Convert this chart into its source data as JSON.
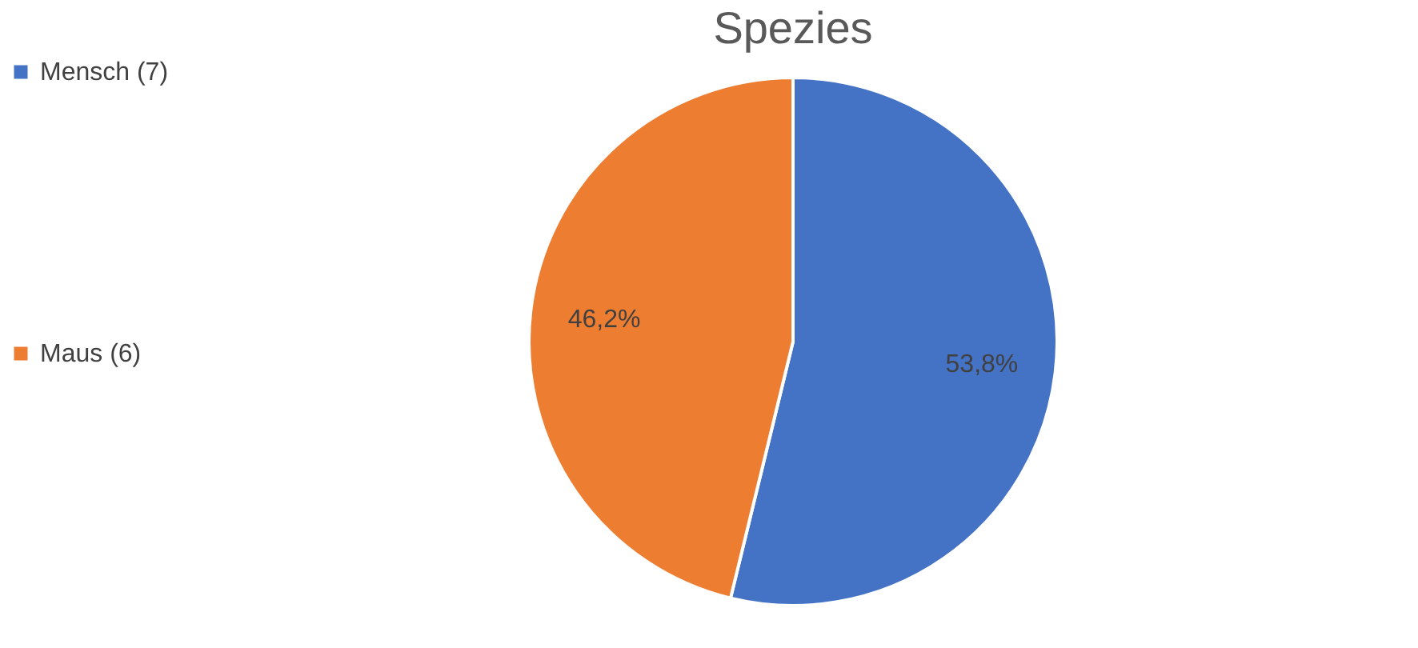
{
  "chart_data": {
    "type": "pie",
    "title": "Spezies",
    "categories": [
      "Mensch (7)",
      "Maus (6)"
    ],
    "values": [
      53.8,
      46.2
    ],
    "value_labels": [
      "53,8%",
      "46,2%"
    ],
    "colors": [
      "#4472c4",
      "#ed7d31"
    ],
    "legend": "left"
  }
}
